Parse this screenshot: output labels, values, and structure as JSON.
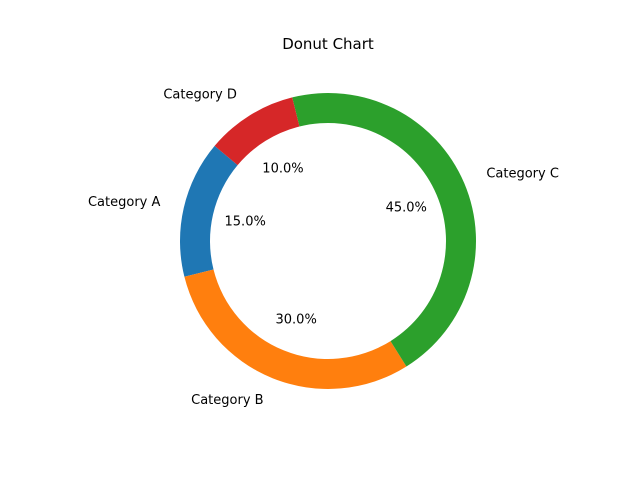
{
  "chart_data": {
    "type": "pie",
    "variant": "donut",
    "title": "Donut Chart",
    "categories": [
      "Category A",
      "Category B",
      "Category C",
      "Category D"
    ],
    "values": [
      15,
      30,
      45,
      10
    ],
    "percent_labels": [
      "15.0%",
      "30.0%",
      "45.0%",
      "10.0%"
    ],
    "colors": [
      "#1f77b4",
      "#ff7f0e",
      "#2ca02c",
      "#d62728"
    ],
    "start_angle_deg": 140,
    "direction": "counterclockwise",
    "legend": "none"
  }
}
